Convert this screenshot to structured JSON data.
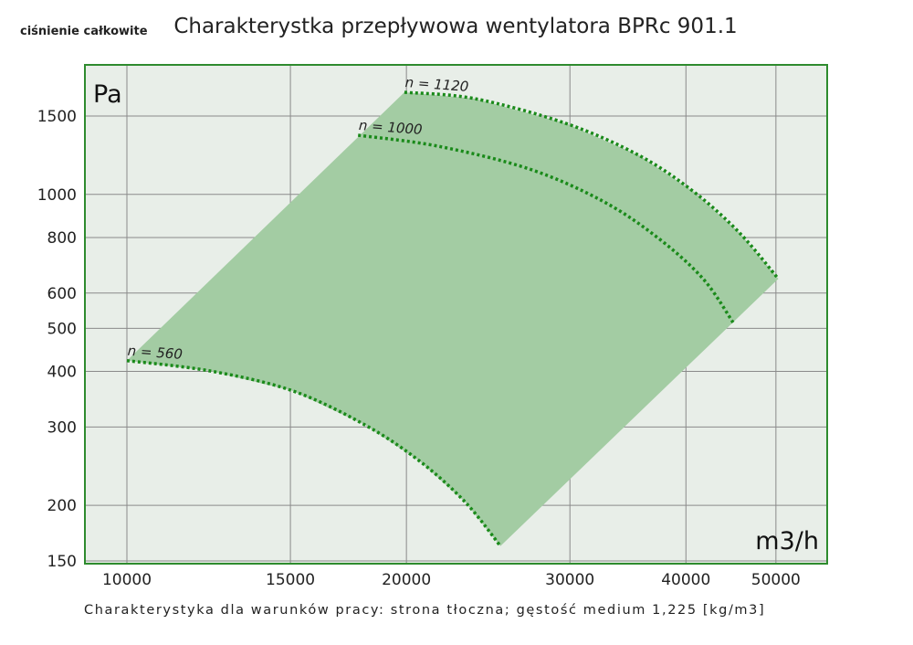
{
  "chart_data": {
    "type": "line",
    "title": "Charakterystka przepływowa wentylatora BPRc 901.1",
    "ylabel": "ciśnienie całkowite",
    "y_unit": "Pa",
    "x_unit": "m3/h",
    "footnote": "Charakterystyka dla warunków pracy: strona tłoczna; gęstość medium 1,225 [kg/m3]",
    "xscale": "log",
    "yscale": "log",
    "xlim": [
      9000,
      56000
    ],
    "ylim": [
      149,
      1900
    ],
    "xticks": [
      10000,
      15000,
      20000,
      30000,
      40000,
      50000
    ],
    "xtick_labels": [
      "10000",
      "15000",
      "20000",
      "30000",
      "40000",
      "50000"
    ],
    "yticks": [
      150,
      200,
      300,
      400,
      500,
      600,
      800,
      1000,
      1500
    ],
    "ytick_labels": [
      "150",
      "200",
      "300",
      "400",
      "500",
      "600",
      "800",
      "1000",
      "1500"
    ],
    "grid": true,
    "series": [
      {
        "name": "n = 1120",
        "x": [
          19900,
          23700,
          29700,
          35600,
          40800,
          45700,
          50300
        ],
        "y": [
          1696,
          1641,
          1444,
          1224,
          1013,
          819,
          646
        ]
      },
      {
        "name": "n = 1000",
        "x": [
          17740,
          21640,
          27140,
          32530,
          37270,
          41740,
          44970
        ],
        "y": [
          1358,
          1283,
          1140,
          966,
          800,
          646,
          515
        ]
      },
      {
        "name": "n = 560",
        "x": [
          10000,
          12290,
          15070,
          18060,
          20690,
          23160,
          25250
        ],
        "y": [
          423,
          401,
          362,
          303,
          251,
          203,
          162
        ]
      }
    ],
    "colors": {
      "fill": "#a3cca3",
      "bg": "#e8eee8",
      "curve": "#1a8a1a",
      "border": "#2e8b2e",
      "grid": "#8a8a8a"
    }
  }
}
